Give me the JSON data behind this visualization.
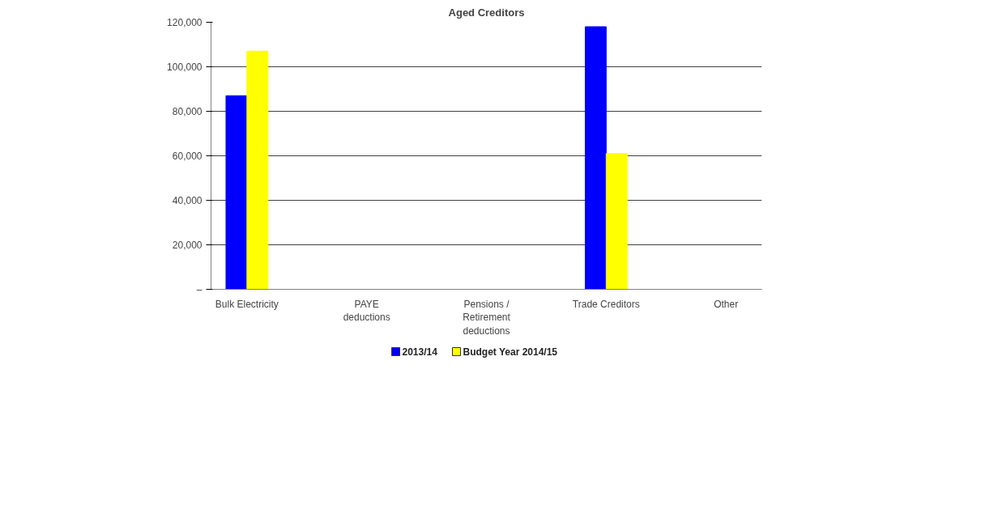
{
  "chart_data": {
    "type": "bar",
    "title": "Aged Creditors",
    "categories": [
      "Bulk Electricity",
      null,
      "PAYE deductions",
      null,
      "Pensions / Retirement deductions",
      null,
      "Trade Creditors",
      null,
      "Other"
    ],
    "series": [
      {
        "name": "2013/14",
        "color": "#0000ff",
        "values": [
          87000,
          0,
          0,
          0,
          0,
          0,
          118000,
          0,
          0
        ]
      },
      {
        "name": "Budget Year 2014/15",
        "color": "#ffff00",
        "values": [
          107000,
          0,
          0,
          0,
          0,
          0,
          61000,
          0,
          0
        ]
      }
    ],
    "ylim": [
      0,
      120000
    ],
    "yticks": [
      {
        "value": 0,
        "label": "–"
      },
      {
        "value": 20000,
        "label": "20,000"
      },
      {
        "value": 40000,
        "label": "40,000"
      },
      {
        "value": 60000,
        "label": "60,000"
      },
      {
        "value": 80000,
        "label": "80,000"
      },
      {
        "value": 100000,
        "label": "100,000"
      },
      {
        "value": 120000,
        "label": "120,000"
      }
    ],
    "grid": "y",
    "legend": "bottom"
  }
}
